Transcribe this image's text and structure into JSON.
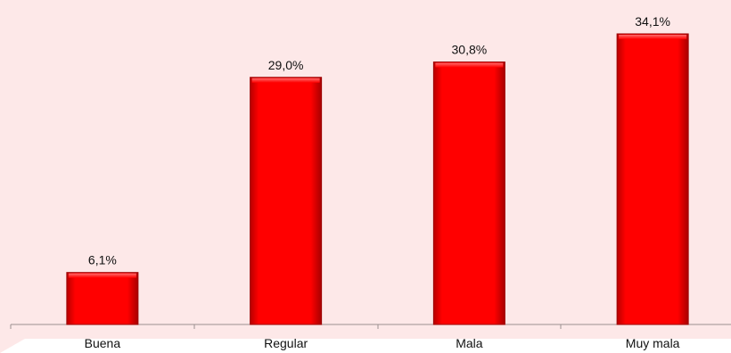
{
  "chart_data": {
    "type": "bar",
    "title": "",
    "xlabel": "",
    "ylabel": "",
    "categories": [
      "Buena",
      "Regular",
      "Mala",
      "Muy mala"
    ],
    "values": [
      6.1,
      29.0,
      30.8,
      34.1
    ],
    "data_labels": [
      "6,1%",
      "29,0%",
      "30,8%",
      "34,1%"
    ],
    "unit": "%",
    "ylim": [
      0,
      35
    ],
    "grid": false,
    "legend": "none",
    "colors": {
      "background": "#fde8e8",
      "bar_fill": "#ff0000",
      "bar_edge": "#9b0000",
      "axis": "#9a8f8f",
      "label_text": "#111111"
    }
  }
}
